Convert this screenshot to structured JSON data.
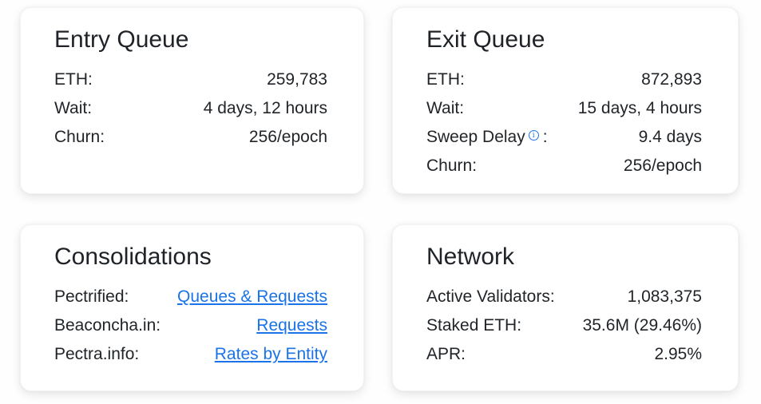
{
  "theme": {
    "page_background": "#fefefe",
    "card_background": "#ffffff",
    "text_color": "#212529",
    "link_color": "#1a73e8",
    "info_icon_color": "#1a73e8"
  },
  "icons": {
    "info_glyph": "i"
  },
  "cards": {
    "entry_queue": {
      "title": "Entry Queue",
      "rows": [
        {
          "label": "ETH:",
          "value": "259,783"
        },
        {
          "label": "Wait:",
          "value": "4 days, 12 hours"
        },
        {
          "label": "Churn:",
          "value": "256/epoch"
        }
      ]
    },
    "exit_queue": {
      "title": "Exit Queue",
      "rows": [
        {
          "label": "ETH:",
          "value": "872,893"
        },
        {
          "label": "Wait:",
          "value": "15 days, 4 hours"
        },
        {
          "label": "Sweep Delay",
          "colon": ":",
          "value": "9.4 days"
        },
        {
          "label": "Churn:",
          "value": "256/epoch"
        }
      ]
    },
    "consolidations": {
      "title": "Consolidations",
      "rows": [
        {
          "label": "Pectrified:",
          "link": "Queues & Requests"
        },
        {
          "label": "Beaconcha.in:",
          "link": "Requests"
        },
        {
          "label": "Pectra.info:",
          "link": "Rates by Entity"
        }
      ]
    },
    "network": {
      "title": "Network",
      "rows": [
        {
          "label": "Active Validators:",
          "value": "1,083,375"
        },
        {
          "label": "Staked ETH:",
          "value": "35.6M (29.46%)"
        },
        {
          "label": "APR:",
          "value": "2.95%"
        }
      ]
    }
  }
}
